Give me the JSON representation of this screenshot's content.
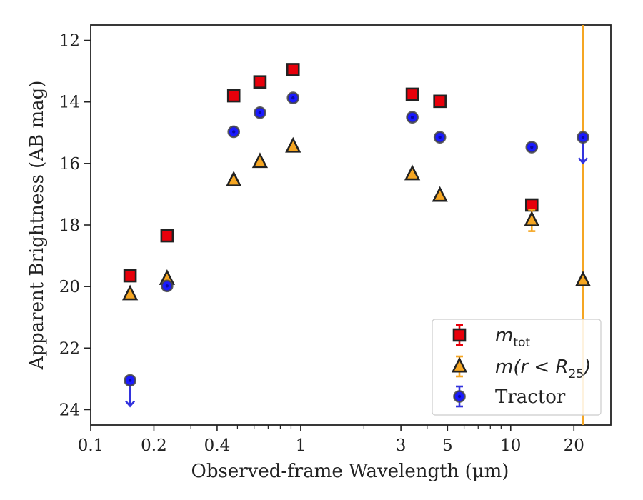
{
  "chart_data": {
    "type": "scatter",
    "title": "",
    "xlabel": "Observed-frame Wavelength (μm)",
    "ylabel": "Apparent Brightness (AB mag)",
    "x_scale": "log",
    "xlim": [
      0.1,
      30
    ],
    "ylim": [
      24.5,
      11.5
    ],
    "y_inverted": true,
    "grid": false,
    "legend_position": "lower right",
    "x_ticks": [
      {
        "value": 0.1,
        "label": "0.1"
      },
      {
        "value": 0.2,
        "label": "0.2"
      },
      {
        "value": 0.4,
        "label": "0.4"
      },
      {
        "value": 1,
        "label": "1"
      },
      {
        "value": 3,
        "label": "3"
      },
      {
        "value": 5,
        "label": "5"
      },
      {
        "value": 10,
        "label": "10"
      },
      {
        "value": 20,
        "label": "20"
      }
    ],
    "y_ticks": [
      {
        "value": 12,
        "label": "12"
      },
      {
        "value": 14,
        "label": "14"
      },
      {
        "value": 16,
        "label": "16"
      },
      {
        "value": 18,
        "label": "18"
      },
      {
        "value": 20,
        "label": "20"
      },
      {
        "value": 22,
        "label": "22"
      },
      {
        "value": 24,
        "label": "24"
      }
    ],
    "series": [
      {
        "name": "m_tot",
        "marker": "square",
        "color": "#e8000b",
        "edge_color": "#222222",
        "points": [
          {
            "x": 0.154,
            "y": 19.65
          },
          {
            "x": 0.231,
            "y": 18.35
          },
          {
            "x": 0.48,
            "y": 13.8
          },
          {
            "x": 0.64,
            "y": 13.35
          },
          {
            "x": 0.92,
            "y": 12.95
          },
          {
            "x": 3.4,
            "y": 13.75
          },
          {
            "x": 4.6,
            "y": 13.98
          },
          {
            "x": 12.6,
            "y": 17.35,
            "yerr": 0.15
          }
        ]
      },
      {
        "name": "m(r < R25)",
        "marker": "triangle",
        "color": "#f5a623",
        "edge_color": "#222222",
        "points": [
          {
            "x": 0.154,
            "y": 20.25
          },
          {
            "x": 0.231,
            "y": 19.75
          },
          {
            "x": 0.48,
            "y": 16.55
          },
          {
            "x": 0.64,
            "y": 15.95
          },
          {
            "x": 0.92,
            "y": 15.45
          },
          {
            "x": 3.4,
            "y": 16.35
          },
          {
            "x": 4.6,
            "y": 17.05
          },
          {
            "x": 12.6,
            "y": 17.85,
            "yerr": 0.35
          },
          {
            "x": 22.1,
            "y": 19.8,
            "yerr_low": 8.5,
            "yerr_high": 5.0
          }
        ]
      },
      {
        "name": "Tractor",
        "marker": "circle",
        "color": "#1a1aff",
        "edge_color": "#444444",
        "points": [
          {
            "x": 0.154,
            "y": 23.05,
            "upper_limit": true
          },
          {
            "x": 0.231,
            "y": 19.98
          },
          {
            "x": 0.48,
            "y": 14.97
          },
          {
            "x": 0.64,
            "y": 14.35
          },
          {
            "x": 0.92,
            "y": 13.87
          },
          {
            "x": 3.4,
            "y": 14.5
          },
          {
            "x": 4.6,
            "y": 15.15
          },
          {
            "x": 12.6,
            "y": 15.47
          },
          {
            "x": 22.1,
            "y": 15.15,
            "upper_limit": true
          }
        ]
      }
    ],
    "legend": {
      "entries": [
        {
          "series": 0,
          "label_main": "m",
          "label_sub": "tot",
          "label_tail": ""
        },
        {
          "series": 1,
          "label_main": "m(r < R",
          "label_sub": "25",
          "label_tail": ")"
        },
        {
          "series": 2,
          "label_main": "Tractor",
          "label_sub": "",
          "label_tail": ""
        }
      ]
    }
  }
}
